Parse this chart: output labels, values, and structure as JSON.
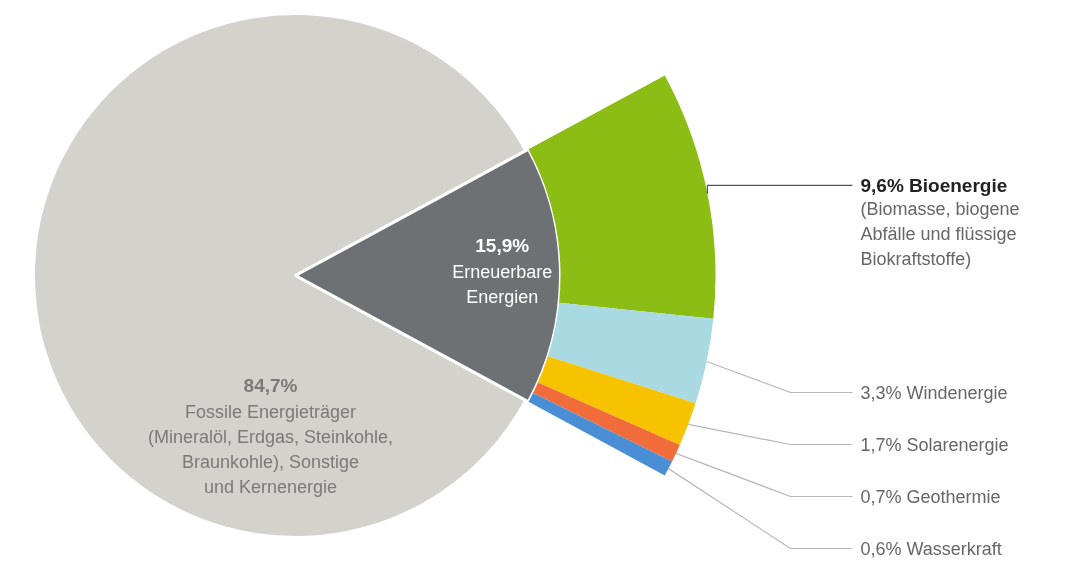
{
  "chart_data": {
    "type": "pie",
    "categories": [
      "Fossile Energieträger\n(Mineralöl, Erdgas, Steinkohle,\nBraunkohle), Sonstige\nund Kernenergie",
      "Erneuerbare\nEnergien",
      "Bioenergie\n(Biomasse, biogene\nAbfälle und flüssige\nBiokraftstoffe)",
      "Windenergie",
      "Solarenergie",
      "Geothermie",
      "Wasserkraft"
    ],
    "series": [
      {
        "values": [
          84.7,
          15.9,
          null,
          null,
          null,
          null,
          null
        ],
        "colors": [
          "#d3d2cc",
          "#6d7173",
          null,
          null,
          null,
          null,
          null
        ],
        "value_labels": [
          "84,7%",
          "15,9%",
          null,
          null,
          null,
          null,
          null
        ]
      },
      {
        "type": "donut",
        "values": [
          null,
          null,
          9.6,
          3.3,
          1.7,
          0.7,
          0.6
        ],
        "colors": [
          null,
          null,
          "#8cbd14",
          "#a9d9e1",
          "#f7c300",
          "#f26b3a",
          "#4a8fd6"
        ],
        "value_labels": [
          null,
          null,
          "9,6%",
          "3,3%",
          "1,7%",
          "0,7%",
          "0,6%"
        ]
      }
    ]
  }
}
